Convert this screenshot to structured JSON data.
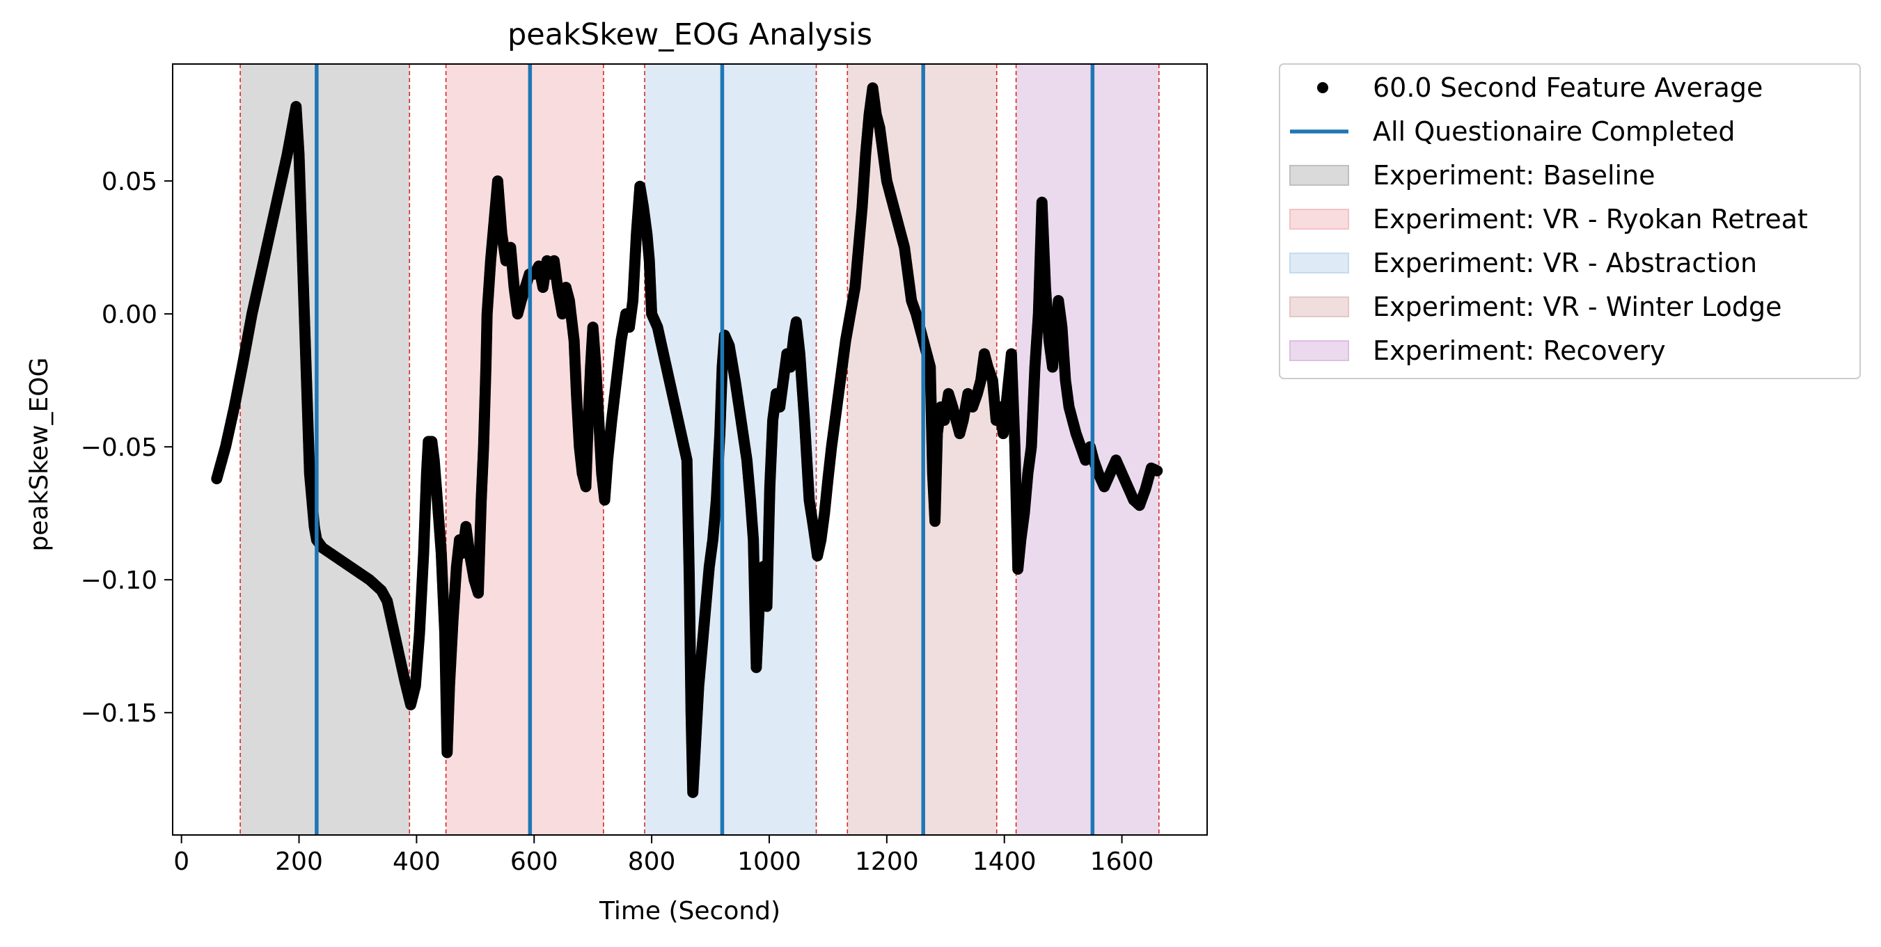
{
  "chart_data": {
    "type": "scatter",
    "title": "peakSkew_EOG Analysis",
    "xlabel": "Time (Second)",
    "ylabel": "peakSkew_EOG",
    "xlim": [
      -15,
      1745
    ],
    "ylim": [
      -0.196,
      0.094
    ],
    "xticks": [
      0,
      200,
      400,
      600,
      800,
      1000,
      1200,
      1400,
      1600
    ],
    "xtick_labels": [
      "0",
      "200",
      "400",
      "600",
      "800",
      "1000",
      "1200",
      "1400",
      "1600"
    ],
    "yticks": [
      0.05,
      0.0,
      -0.05,
      -0.1,
      -0.15
    ],
    "ytick_labels": [
      "0.05",
      "0.00",
      "−0.05",
      "−0.10",
      "−0.15"
    ],
    "grid": false,
    "legend_position": "outside-right",
    "point_color": "#000000",
    "questionnaire_color": "#1f77b4",
    "boundary_color": "#d62728",
    "phases": [
      {
        "name": "Experiment: Baseline",
        "start": 100,
        "end": 388,
        "color": "#bfbfbf"
      },
      {
        "name": "Experiment: VR - Ryokan Retreat",
        "start": 450,
        "end": 718,
        "color": "#f4c2c6"
      },
      {
        "name": "Experiment: VR - Abstraction",
        "start": 788,
        "end": 1080,
        "color": "#c6dbee"
      },
      {
        "name": "Experiment: VR - Winter Lodge",
        "start": 1133,
        "end": 1387,
        "color": "#e6c6c6"
      },
      {
        "name": "Experiment: Recovery",
        "start": 1420,
        "end": 1663,
        "color": "#dcbfe0"
      }
    ],
    "questionnaire_lines": [
      230,
      593,
      920,
      1262,
      1550
    ],
    "series": [
      {
        "name": "60.0 Second Feature Average",
        "marker": "point",
        "points": [
          [
            60,
            -0.062
          ],
          [
            75,
            -0.05
          ],
          [
            90,
            -0.035
          ],
          [
            105,
            -0.018
          ],
          [
            120,
            0.0
          ],
          [
            135,
            0.015
          ],
          [
            150,
            0.03
          ],
          [
            165,
            0.045
          ],
          [
            180,
            0.06
          ],
          [
            195,
            0.078
          ],
          [
            200,
            0.06
          ],
          [
            203,
            0.04
          ],
          [
            206,
            0.02
          ],
          [
            209,
            0.0
          ],
          [
            212,
            -0.02
          ],
          [
            215,
            -0.04
          ],
          [
            218,
            -0.06
          ],
          [
            222,
            -0.07
          ],
          [
            226,
            -0.08
          ],
          [
            230,
            -0.085
          ],
          [
            240,
            -0.088
          ],
          [
            260,
            -0.091
          ],
          [
            280,
            -0.094
          ],
          [
            300,
            -0.097
          ],
          [
            320,
            -0.1
          ],
          [
            340,
            -0.104
          ],
          [
            350,
            -0.108
          ],
          [
            360,
            -0.118
          ],
          [
            370,
            -0.128
          ],
          [
            380,
            -0.138
          ],
          [
            390,
            -0.147
          ],
          [
            398,
            -0.14
          ],
          [
            405,
            -0.12
          ],
          [
            412,
            -0.09
          ],
          [
            417,
            -0.06
          ],
          [
            420,
            -0.048
          ],
          [
            426,
            -0.048
          ],
          [
            430,
            -0.055
          ],
          [
            436,
            -0.072
          ],
          [
            442,
            -0.09
          ],
          [
            448,
            -0.12
          ],
          [
            452,
            -0.165
          ],
          [
            456,
            -0.14
          ],
          [
            462,
            -0.115
          ],
          [
            468,
            -0.095
          ],
          [
            473,
            -0.085
          ],
          [
            478,
            -0.09
          ],
          [
            484,
            -0.08
          ],
          [
            490,
            -0.09
          ],
          [
            498,
            -0.1
          ],
          [
            505,
            -0.105
          ],
          [
            510,
            -0.07
          ],
          [
            514,
            -0.05
          ],
          [
            518,
            -0.02
          ],
          [
            520,
            0.0
          ],
          [
            526,
            0.02
          ],
          [
            532,
            0.035
          ],
          [
            538,
            0.05
          ],
          [
            545,
            0.03
          ],
          [
            552,
            0.02
          ],
          [
            560,
            0.025
          ],
          [
            566,
            0.01
          ],
          [
            572,
            0.0
          ],
          [
            578,
            0.005
          ],
          [
            585,
            0.01
          ],
          [
            592,
            0.015
          ],
          [
            600,
            0.015
          ],
          [
            608,
            0.018
          ],
          [
            615,
            0.01
          ],
          [
            622,
            0.02
          ],
          [
            628,
            0.015
          ],
          [
            634,
            0.02
          ],
          [
            640,
            0.01
          ],
          [
            648,
            0.0
          ],
          [
            654,
            0.01
          ],
          [
            660,
            0.005
          ],
          [
            668,
            -0.01
          ],
          [
            672,
            -0.03
          ],
          [
            677,
            -0.05
          ],
          [
            682,
            -0.06
          ],
          [
            688,
            -0.065
          ],
          [
            692,
            -0.04
          ],
          [
            696,
            -0.02
          ],
          [
            700,
            -0.005
          ],
          [
            705,
            -0.02
          ],
          [
            710,
            -0.04
          ],
          [
            715,
            -0.06
          ],
          [
            720,
            -0.07
          ],
          [
            725,
            -0.055
          ],
          [
            732,
            -0.04
          ],
          [
            740,
            -0.025
          ],
          [
            748,
            -0.01
          ],
          [
            756,
            0.0
          ],
          [
            762,
            -0.005
          ],
          [
            768,
            0.005
          ],
          [
            774,
            0.03
          ],
          [
            780,
            0.048
          ],
          [
            786,
            0.04
          ],
          [
            792,
            0.03
          ],
          [
            796,
            0.02
          ],
          [
            800,
            0.0
          ],
          [
            810,
            -0.005
          ],
          [
            820,
            -0.015
          ],
          [
            830,
            -0.025
          ],
          [
            840,
            -0.035
          ],
          [
            850,
            -0.045
          ],
          [
            860,
            -0.055
          ],
          [
            864,
            -0.1
          ],
          [
            867,
            -0.15
          ],
          [
            870,
            -0.18
          ],
          [
            875,
            -0.16
          ],
          [
            880,
            -0.14
          ],
          [
            886,
            -0.125
          ],
          [
            892,
            -0.11
          ],
          [
            898,
            -0.095
          ],
          [
            904,
            -0.085
          ],
          [
            910,
            -0.07
          ],
          [
            916,
            -0.045
          ],
          [
            920,
            -0.02
          ],
          [
            924,
            -0.008
          ],
          [
            932,
            -0.012
          ],
          [
            942,
            -0.025
          ],
          [
            952,
            -0.04
          ],
          [
            962,
            -0.055
          ],
          [
            968,
            -0.07
          ],
          [
            973,
            -0.085
          ],
          [
            978,
            -0.133
          ],
          [
            984,
            -0.105
          ],
          [
            990,
            -0.095
          ],
          [
            996,
            -0.11
          ],
          [
            1001,
            -0.065
          ],
          [
            1006,
            -0.04
          ],
          [
            1012,
            -0.03
          ],
          [
            1018,
            -0.035
          ],
          [
            1024,
            -0.025
          ],
          [
            1030,
            -0.015
          ],
          [
            1036,
            -0.02
          ],
          [
            1042,
            -0.008
          ],
          [
            1046,
            -0.003
          ],
          [
            1052,
            -0.015
          ],
          [
            1060,
            -0.04
          ],
          [
            1068,
            -0.07
          ],
          [
            1075,
            -0.08
          ],
          [
            1082,
            -0.091
          ],
          [
            1088,
            -0.085
          ],
          [
            1094,
            -0.075
          ],
          [
            1100,
            -0.062
          ],
          [
            1106,
            -0.05
          ],
          [
            1112,
            -0.04
          ],
          [
            1118,
            -0.03
          ],
          [
            1124,
            -0.02
          ],
          [
            1130,
            -0.01
          ],
          [
            1138,
            0.0
          ],
          [
            1146,
            0.01
          ],
          [
            1152,
            0.025
          ],
          [
            1158,
            0.04
          ],
          [
            1164,
            0.06
          ],
          [
            1170,
            0.075
          ],
          [
            1176,
            0.085
          ],
          [
            1182,
            0.075
          ],
          [
            1188,
            0.07
          ],
          [
            1194,
            0.06
          ],
          [
            1200,
            0.05
          ],
          [
            1206,
            0.045
          ],
          [
            1212,
            0.04
          ],
          [
            1218,
            0.035
          ],
          [
            1224,
            0.03
          ],
          [
            1230,
            0.025
          ],
          [
            1236,
            0.015
          ],
          [
            1242,
            0.005
          ],
          [
            1250,
            0.0
          ],
          [
            1256,
            -0.005
          ],
          [
            1262,
            -0.01
          ],
          [
            1268,
            -0.015
          ],
          [
            1274,
            -0.02
          ],
          [
            1278,
            -0.06
          ],
          [
            1282,
            -0.078
          ],
          [
            1286,
            -0.045
          ],
          [
            1292,
            -0.035
          ],
          [
            1298,
            -0.04
          ],
          [
            1305,
            -0.03
          ],
          [
            1312,
            -0.035
          ],
          [
            1318,
            -0.04
          ],
          [
            1324,
            -0.045
          ],
          [
            1330,
            -0.04
          ],
          [
            1338,
            -0.03
          ],
          [
            1346,
            -0.035
          ],
          [
            1354,
            -0.03
          ],
          [
            1360,
            -0.025
          ],
          [
            1366,
            -0.015
          ],
          [
            1372,
            -0.02
          ],
          [
            1380,
            -0.025
          ],
          [
            1386,
            -0.04
          ],
          [
            1392,
            -0.035
          ],
          [
            1398,
            -0.045
          ],
          [
            1405,
            -0.03
          ],
          [
            1412,
            -0.015
          ],
          [
            1418,
            -0.05
          ],
          [
            1423,
            -0.096
          ],
          [
            1428,
            -0.085
          ],
          [
            1434,
            -0.075
          ],
          [
            1440,
            -0.06
          ],
          [
            1446,
            -0.05
          ],
          [
            1452,
            -0.02
          ],
          [
            1458,
            0.0
          ],
          [
            1464,
            0.042
          ],
          [
            1470,
            0.01
          ],
          [
            1476,
            -0.01
          ],
          [
            1482,
            -0.02
          ],
          [
            1488,
            -0.005
          ],
          [
            1492,
            0.005
          ],
          [
            1498,
            -0.005
          ],
          [
            1504,
            -0.025
          ],
          [
            1510,
            -0.035
          ],
          [
            1516,
            -0.04
          ],
          [
            1522,
            -0.045
          ],
          [
            1530,
            -0.05
          ],
          [
            1538,
            -0.055
          ],
          [
            1546,
            -0.05
          ],
          [
            1552,
            -0.055
          ],
          [
            1560,
            -0.06
          ],
          [
            1570,
            -0.065
          ],
          [
            1580,
            -0.06
          ],
          [
            1590,
            -0.055
          ],
          [
            1600,
            -0.06
          ],
          [
            1610,
            -0.065
          ],
          [
            1620,
            -0.07
          ],
          [
            1630,
            -0.072
          ],
          [
            1640,
            -0.066
          ],
          [
            1650,
            -0.058
          ],
          [
            1660,
            -0.059
          ]
        ]
      }
    ],
    "legend": [
      {
        "type": "marker",
        "label": "60.0 Second Feature Average",
        "color": "#000000"
      },
      {
        "type": "line",
        "label": "All Questionaire Completed",
        "color": "#1f77b4"
      },
      {
        "type": "patch",
        "label": "Experiment: Baseline",
        "color": "#bfbfbf"
      },
      {
        "type": "patch",
        "label": "Experiment: VR - Ryokan Retreat",
        "color": "#f4c2c6"
      },
      {
        "type": "patch",
        "label": "Experiment: VR - Abstraction",
        "color": "#c6dbee"
      },
      {
        "type": "patch",
        "label": "Experiment: VR - Winter Lodge",
        "color": "#e6c6c6"
      },
      {
        "type": "patch",
        "label": "Experiment: Recovery",
        "color": "#dcbfe0"
      }
    ]
  }
}
